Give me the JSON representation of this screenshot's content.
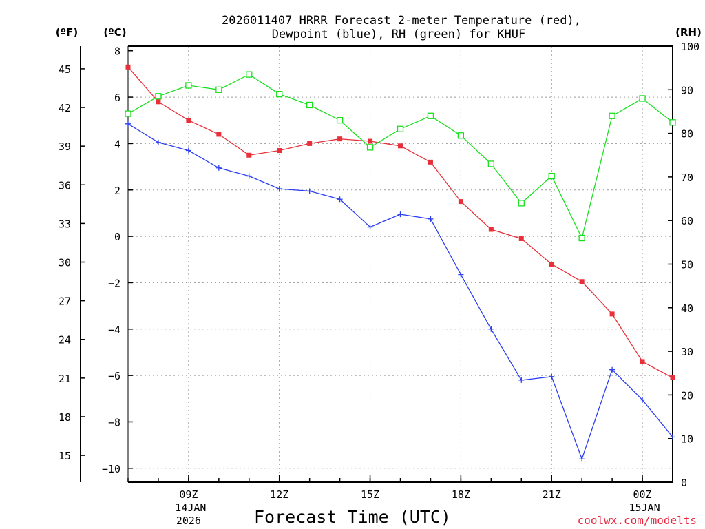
{
  "chart_data": {
    "type": "line",
    "title": "2026011407 HRRR Forecast 2-meter Temperature (red),",
    "subtitle": "Dewpoint (blue), RH (green) for KHUF",
    "xlabel": "Forecast Time (UTC)",
    "left_unit_f": "(ºF)",
    "left_unit_c": "(ºC)",
    "right_unit": "(RH)",
    "credit": "coolwx.com/modelts",
    "x_hours": [
      7,
      8,
      9,
      10,
      11,
      12,
      13,
      14,
      15,
      16,
      17,
      18,
      19,
      20,
      21,
      22,
      23,
      24,
      25
    ],
    "xlim": [
      7,
      25
    ],
    "x_ticks": [
      {
        "hour": 9,
        "label": "09Z",
        "date": "14JAN",
        "year": "2026"
      },
      {
        "hour": 12,
        "label": "12Z"
      },
      {
        "hour": 15,
        "label": "15Z"
      },
      {
        "hour": 18,
        "label": "18Z"
      },
      {
        "hour": 21,
        "label": "21Z"
      },
      {
        "hour": 24,
        "label": "00Z",
        "date": "15JAN"
      }
    ],
    "ylim_c": [
      -10.6,
      8.2
    ],
    "y_ticks_c": [
      8,
      6,
      4,
      2,
      0,
      -2,
      -4,
      -6,
      -8,
      -10
    ],
    "y_ticks_f": [
      45,
      42,
      39,
      36,
      33,
      30,
      27,
      24,
      21,
      18,
      15
    ],
    "ylim_rh": [
      0,
      100
    ],
    "y_ticks_rh": [
      100,
      90,
      80,
      70,
      60,
      50,
      40,
      30,
      20,
      10,
      0
    ],
    "series": [
      {
        "name": "Temperature",
        "color": "#e8303a",
        "marker": "filled-square",
        "axis": "c",
        "values": [
          7.3,
          5.8,
          5.0,
          4.4,
          3.5,
          3.7,
          4.0,
          4.2,
          4.1,
          3.9,
          3.2,
          1.5,
          0.3,
          -0.1,
          -1.2,
          -1.95,
          -3.35,
          -5.4,
          -6.1
        ]
      },
      {
        "name": "Dewpoint",
        "color": "#2b3ef0",
        "marker": "plus",
        "axis": "c",
        "values": [
          4.85,
          4.05,
          3.7,
          2.95,
          2.6,
          2.05,
          1.95,
          1.6,
          0.4,
          0.95,
          0.75,
          -1.65,
          -4.0,
          -6.2,
          -6.05,
          -9.6,
          -5.75,
          -7.05,
          -8.65
        ]
      },
      {
        "name": "RH",
        "color": "#19e01e",
        "marker": "open-square",
        "axis": "rh",
        "values": [
          84.5,
          88.5,
          91.0,
          90.0,
          93.5,
          89.0,
          86.5,
          83.0,
          76.8,
          81.0,
          84.0,
          79.5,
          73.0,
          64.0,
          70.2,
          56.0,
          84.0,
          88.0,
          82.5
        ]
      }
    ]
  }
}
